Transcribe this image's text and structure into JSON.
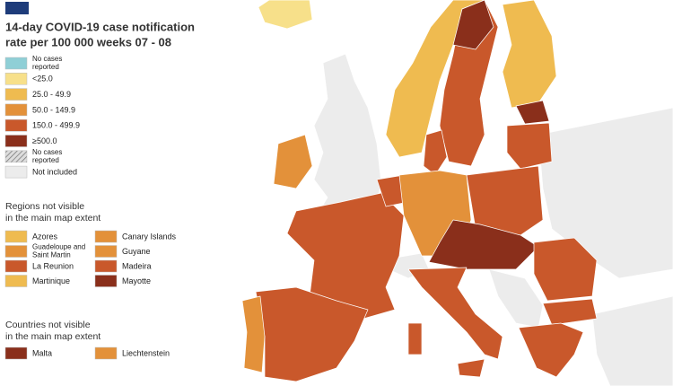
{
  "title_lines": [
    "14-day COVID-19 case notification",
    "rate per 100 000 weeks  07 - 08"
  ],
  "legend": [
    {
      "label": "No cases reported",
      "color": "#8fcfd6"
    },
    {
      "label": "<25.0",
      "color": "#f7e08a"
    },
    {
      "label": "25.0 - 49.9",
      "color": "#efbb50"
    },
    {
      "label": "50.0 - 149.9",
      "color": "#e3913a"
    },
    {
      "label": "150.0 - 499.9",
      "color": "#c9582b"
    },
    {
      "label": "≥500.0",
      "color": "#8a2f1b"
    },
    {
      "label": "No cases reported"
    },
    {
      "label": "Not included",
      "color": "#ececec"
    }
  ],
  "regions_title": [
    "Regions not visible",
    "in the main map extent"
  ],
  "regions": [
    {
      "label": "Azores",
      "color": "#efbb50"
    },
    {
      "label": "Canary Islands",
      "color": "#e3913a"
    },
    {
      "label": "Guadeloupe and Saint Martin",
      "color": "#e3913a"
    },
    {
      "label": "Guyane",
      "color": "#e3913a"
    },
    {
      "label": "La Reunion",
      "color": "#c9582b"
    },
    {
      "label": "Madeira",
      "color": "#c9582b"
    },
    {
      "label": "Martinique",
      "color": "#efbb50"
    },
    {
      "label": "Mayotte",
      "color": "#8a2f1b"
    }
  ],
  "countries_title": [
    "Countries not visible",
    "in the main map extent"
  ],
  "countries": [
    {
      "label": "Malta",
      "color": "#8a2f1b"
    },
    {
      "label": "Liechtenstein",
      "color": "#e3913a"
    }
  ]
}
